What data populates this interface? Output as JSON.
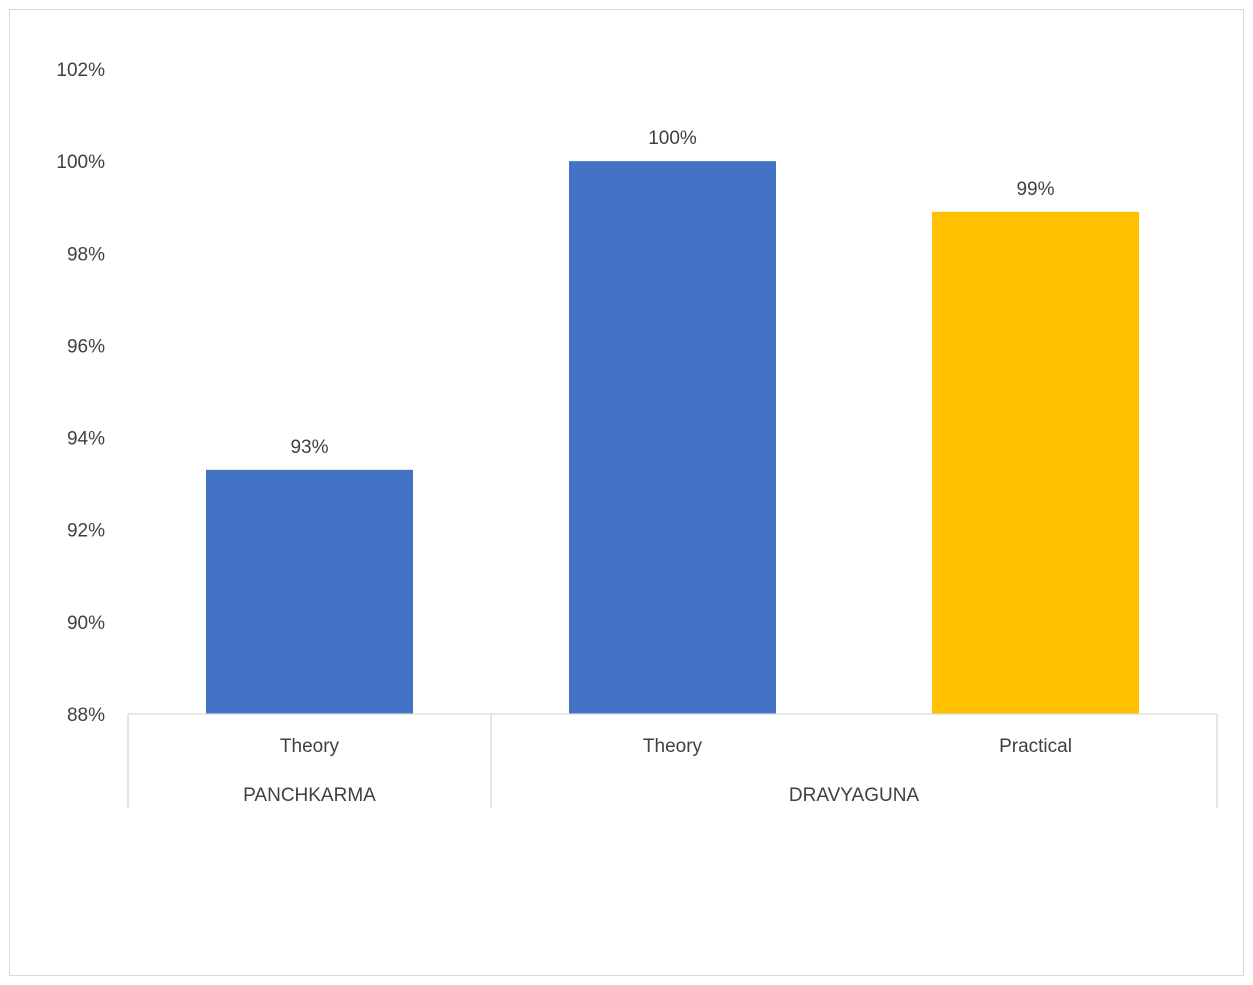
{
  "chart_data": {
    "type": "bar",
    "title": "",
    "xlabel": "",
    "ylabel": "",
    "ylim": [
      88,
      102
    ],
    "y_ticks": [
      "88%",
      "90%",
      "92%",
      "94%",
      "96%",
      "98%",
      "100%",
      "102%"
    ],
    "y_tick_values": [
      88,
      90,
      92,
      94,
      96,
      98,
      100,
      102
    ],
    "groups": [
      {
        "label": "PANCHKARMA",
        "categories": [
          "Theory"
        ]
      },
      {
        "label": "DRAVYAGUNA",
        "categories": [
          "Theory",
          "Practical"
        ]
      }
    ],
    "bars": [
      {
        "group": "PANCHKARMA",
        "category": "Theory",
        "value": 93.3,
        "label": "93%",
        "color": "#4472C4"
      },
      {
        "group": "DRAVYAGUNA",
        "category": "Theory",
        "value": 100,
        "label": "100%",
        "color": "#4472C4"
      },
      {
        "group": "DRAVYAGUNA",
        "category": "Practical",
        "value": 98.9,
        "label": "99%",
        "color": "#FFC000"
      }
    ],
    "grid": false,
    "legend": "none"
  }
}
